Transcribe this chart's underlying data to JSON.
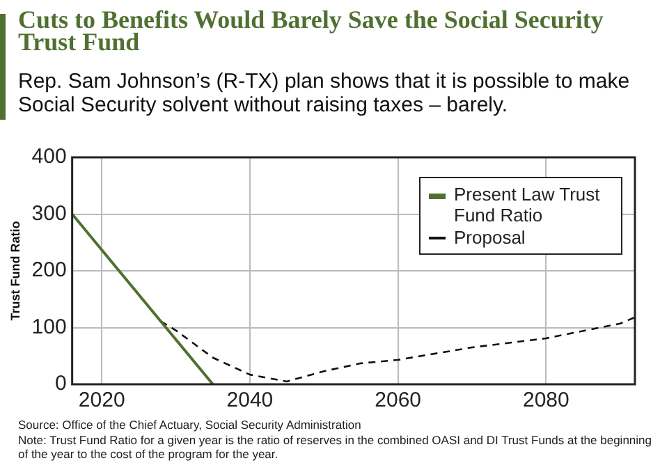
{
  "chart_data": {
    "type": "line",
    "title": "Cuts to Benefits Would Barely Save the Social Security Trust Fund",
    "subtitle": "Rep. Sam Johnson’s (R-TX) plan shows that it is possible to make Social Security solvent without raising taxes – barely.",
    "ylabel": "Trust Fund Ratio",
    "xlim": [
      2016,
      2092
    ],
    "xticks": [
      2020,
      2040,
      2060,
      2080
    ],
    "ylim": [
      0,
      400
    ],
    "yticks": [
      0,
      100,
      200,
      300,
      400
    ],
    "grid": true,
    "legend": "top right",
    "marker": "none",
    "series": [
      {
        "name": "Present Law Trust Fund Ratio",
        "color": "#4f7030",
        "line_style": "solid",
        "x": [
          2016,
          2035
        ],
        "values": [
          300,
          0
        ]
      },
      {
        "name": "Proposal",
        "color": "#111111",
        "line_style": "dashed",
        "x": [
          2028,
          2030,
          2035,
          2040,
          2045,
          2050,
          2055,
          2060,
          2070,
          2080,
          2090,
          2092
        ],
        "values": [
          111,
          95,
          47,
          17,
          5,
          23,
          37,
          43,
          65,
          81,
          107,
          118
        ]
      }
    ],
    "annotations": [
      "Source: Office of the Chief Actuary, Social Security Administration",
      "Note: Trust Fund Ratio for a given year is the ratio of reserves in the combined OASI and DI Trust Funds at the beginning of the year to the cost of the program for the year."
    ]
  }
}
